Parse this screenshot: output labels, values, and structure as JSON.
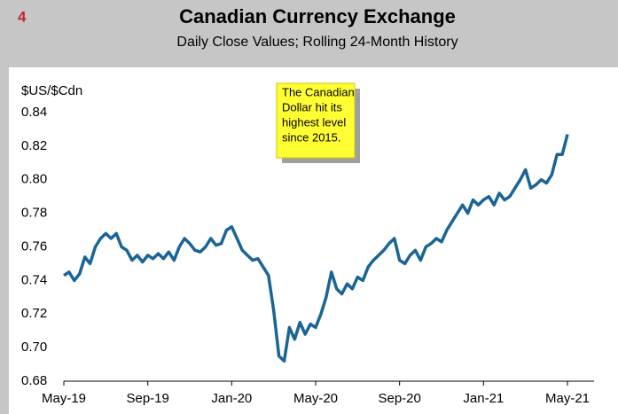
{
  "chart_data": {
    "type": "line",
    "page_number": "4",
    "title": "Canadian Currency Exchange",
    "subtitle": "Daily Close Values; Rolling 24-Month History",
    "y_axis_label": "$US/$Cdn",
    "annotation": [
      "The Canadian",
      "Dollar hit its",
      "highest level",
      "since 2015."
    ],
    "categories": [
      "May-19",
      null,
      null,
      null,
      null,
      null,
      null,
      null,
      null,
      null,
      null,
      null,
      null,
      null,
      null,
      null,
      "Sep-19",
      null,
      null,
      null,
      null,
      null,
      null,
      null,
      null,
      null,
      null,
      null,
      null,
      null,
      null,
      null,
      "Jan-20",
      null,
      null,
      null,
      null,
      null,
      null,
      null,
      null,
      null,
      null,
      null,
      null,
      null,
      null,
      null,
      "May-20",
      null,
      null,
      null,
      null,
      null,
      null,
      null,
      null,
      null,
      null,
      null,
      null,
      null,
      null,
      null,
      "Sep-20",
      null,
      null,
      null,
      null,
      null,
      null,
      null,
      null,
      null,
      null,
      null,
      null,
      null,
      null,
      null,
      "Jan-21",
      null,
      null,
      null,
      null,
      null,
      null,
      null,
      null,
      null,
      null,
      null,
      null,
      null,
      null,
      null,
      "May-21"
    ],
    "series": [
      {
        "name": "$US/$Cdn",
        "color": "#1a6496",
        "values": [
          0.743,
          0.745,
          0.74,
          0.744,
          0.754,
          0.75,
          0.76,
          0.765,
          0.768,
          0.765,
          0.768,
          0.76,
          0.758,
          0.752,
          0.755,
          0.751,
          0.755,
          0.753,
          0.756,
          0.753,
          0.757,
          0.752,
          0.76,
          0.765,
          0.762,
          0.758,
          0.757,
          0.76,
          0.765,
          0.761,
          0.762,
          0.77,
          0.772,
          0.765,
          0.758,
          0.755,
          0.752,
          0.753,
          0.748,
          0.743,
          0.722,
          0.695,
          0.692,
          0.712,
          0.705,
          0.715,
          0.708,
          0.714,
          0.712,
          0.72,
          0.73,
          0.745,
          0.735,
          0.732,
          0.738,
          0.735,
          0.742,
          0.74,
          0.748,
          0.752,
          0.755,
          0.758,
          0.762,
          0.765,
          0.752,
          0.75,
          0.755,
          0.758,
          0.752,
          0.76,
          0.762,
          0.765,
          0.763,
          0.77,
          0.775,
          0.78,
          0.785,
          0.78,
          0.788,
          0.785,
          0.788,
          0.79,
          0.785,
          0.792,
          0.788,
          0.79,
          0.795,
          0.8,
          0.806,
          0.795,
          0.797,
          0.8,
          0.798,
          0.803,
          0.815,
          0.815,
          0.827
        ]
      }
    ],
    "ylim": [
      0.68,
      0.84
    ],
    "yticks": [
      0.68,
      {
        "value": 0.7,
        "label": "0.70"
      },
      0.72,
      0.74,
      0.76,
      0.78,
      {
        "value": 0.8,
        "label": "0.80"
      },
      0.82,
      0.84
    ],
    "grid": false
  }
}
